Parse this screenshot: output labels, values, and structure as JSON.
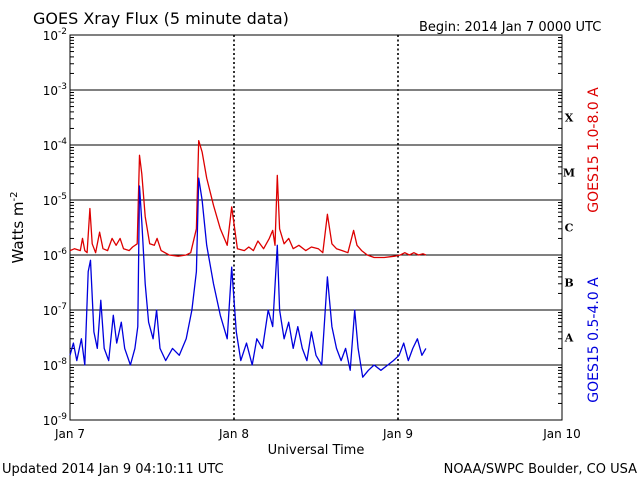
{
  "header": {
    "title": "GOES Xray Flux (5 minute data)",
    "begin": "Begin:  2014 Jan 7 0000 UTC"
  },
  "footer": {
    "updated": "Updated 2014 Jan  9 04:10:11 UTC",
    "credit": "NOAA/SWPC Boulder, CO USA"
  },
  "chart_data": {
    "type": "line",
    "title": "GOES Xray Flux (5 minute data)",
    "xlabel": "Universal Time",
    "ylabel": "Watts m",
    "ylabel_exponent": "-2",
    "y_scale": "log",
    "ylim": [
      1e-09,
      0.01
    ],
    "xlim": [
      "2014-01-07 00:00",
      "2014-01-10 00:00"
    ],
    "x_ticks": [
      "Jan 7",
      "Jan 8",
      "Jan 9",
      "Jan 10"
    ],
    "y_ticks": [
      {
        "value": 1e-09,
        "base": "10",
        "exp": "-9"
      },
      {
        "value": 1e-08,
        "base": "10",
        "exp": "-8"
      },
      {
        "value": 1e-07,
        "base": "10",
        "exp": "-7"
      },
      {
        "value": 1e-06,
        "base": "10",
        "exp": "-6"
      },
      {
        "value": 1e-05,
        "base": "10",
        "exp": "-5"
      },
      {
        "value": 0.0001,
        "base": "10",
        "exp": "-4"
      },
      {
        "value": 0.001,
        "base": "10",
        "exp": "-3"
      },
      {
        "value": 0.01,
        "base": "10",
        "exp": "-2"
      }
    ],
    "flare_classes": [
      {
        "label": "A",
        "value": 3.16e-08
      },
      {
        "label": "B",
        "value": 3.16e-07
      },
      {
        "label": "C",
        "value": 3.16e-06
      },
      {
        "label": "M",
        "value": 3.16e-05
      },
      {
        "label": "X",
        "value": 0.000316
      }
    ],
    "grid": "horizontal at decades; dashed vertical at day boundaries",
    "legend": "right side, vertical",
    "series": [
      {
        "name": "GOES15 1.0-8.0 A",
        "color": "#dd0000",
        "points": [
          [
            "2014-01-07 00:00",
            1.2e-06
          ],
          [
            "2014-01-07 00:40",
            1.3e-06
          ],
          [
            "2014-01-07 01:30",
            1.2e-06
          ],
          [
            "2014-01-07 01:50",
            2e-06
          ],
          [
            "2014-01-07 02:10",
            1.2e-06
          ],
          [
            "2014-01-07 02:30",
            1.1e-06
          ],
          [
            "2014-01-07 02:55",
            7e-06
          ],
          [
            "2014-01-07 03:15",
            1.6e-06
          ],
          [
            "2014-01-07 03:45",
            1.1e-06
          ],
          [
            "2014-01-07 04:20",
            2.6e-06
          ],
          [
            "2014-01-07 04:50",
            1.3e-06
          ],
          [
            "2014-01-07 05:30",
            1.2e-06
          ],
          [
            "2014-01-07 06:10",
            2e-06
          ],
          [
            "2014-01-07 06:45",
            1.5e-06
          ],
          [
            "2014-01-07 07:20",
            2e-06
          ],
          [
            "2014-01-07 07:50",
            1.3e-06
          ],
          [
            "2014-01-07 08:40",
            1.2e-06
          ],
          [
            "2014-01-07 09:10",
            1.4e-06
          ],
          [
            "2014-01-07 09:50",
            1.6e-06
          ],
          [
            "2014-01-07 10:10",
            6.5e-05
          ],
          [
            "2014-01-07 10:30",
            3e-05
          ],
          [
            "2014-01-07 11:00",
            5e-06
          ],
          [
            "2014-01-07 11:40",
            1.6e-06
          ],
          [
            "2014-01-07 12:20",
            1.5e-06
          ],
          [
            "2014-01-07 12:45",
            2e-06
          ],
          [
            "2014-01-07 13:20",
            1.2e-06
          ],
          [
            "2014-01-07 14:30",
            1e-06
          ],
          [
            "2014-01-07 15:50",
            9.5e-07
          ],
          [
            "2014-01-07 17:00",
            1e-06
          ],
          [
            "2014-01-07 17:40",
            1.1e-06
          ],
          [
            "2014-01-07 18:30",
            3e-06
          ],
          [
            "2014-01-07 18:50",
            0.00012
          ],
          [
            "2014-01-07 19:20",
            7.5e-05
          ],
          [
            "2014-01-07 20:00",
            2.5e-05
          ],
          [
            "2014-01-07 21:00",
            8e-06
          ],
          [
            "2014-01-07 22:00",
            3e-06
          ],
          [
            "2014-01-07 23:00",
            1.5e-06
          ],
          [
            "2014-01-07 23:40",
            7.5e-06
          ],
          [
            "2014-01-08 00:30",
            1.3e-06
          ],
          [
            "2014-01-08 01:30",
            1.2e-06
          ],
          [
            "2014-01-08 02:10",
            1.4e-06
          ],
          [
            "2014-01-08 02:50",
            1.2e-06
          ],
          [
            "2014-01-08 03:30",
            1.8e-06
          ],
          [
            "2014-01-08 04:20",
            1.3e-06
          ],
          [
            "2014-01-08 05:10",
            2e-06
          ],
          [
            "2014-01-08 05:40",
            2.8e-06
          ],
          [
            "2014-01-08 06:00",
            1.5e-06
          ],
          [
            "2014-01-08 06:20",
            2.8e-05
          ],
          [
            "2014-01-08 06:40",
            3e-06
          ],
          [
            "2014-01-08 07:20",
            1.6e-06
          ],
          [
            "2014-01-08 08:00",
            2e-06
          ],
          [
            "2014-01-08 08:40",
            1.3e-06
          ],
          [
            "2014-01-08 09:30",
            1.5e-06
          ],
          [
            "2014-01-08 10:30",
            1.2e-06
          ],
          [
            "2014-01-08 11:20",
            1.4e-06
          ],
          [
            "2014-01-08 12:20",
            1.3e-06
          ],
          [
            "2014-01-08 13:00",
            1.1e-06
          ],
          [
            "2014-01-08 13:40",
            5.5e-06
          ],
          [
            "2014-01-08 14:20",
            1.6e-06
          ],
          [
            "2014-01-08 15:00",
            1.3e-06
          ],
          [
            "2014-01-08 15:50",
            1.2e-06
          ],
          [
            "2014-01-08 16:40",
            1.1e-06
          ],
          [
            "2014-01-08 17:30",
            2.8e-06
          ],
          [
            "2014-01-08 18:00",
            1.5e-06
          ],
          [
            "2014-01-08 18:40",
            1.2e-06
          ],
          [
            "2014-01-08 19:30",
            1e-06
          ],
          [
            "2014-01-08 20:30",
            9e-07
          ],
          [
            "2014-01-08 22:00",
            9e-07
          ],
          [
            "2014-01-08 23:30",
            9.5e-07
          ],
          [
            "2014-01-09 00:20",
            1e-06
          ],
          [
            "2014-01-09 01:00",
            1.1e-06
          ],
          [
            "2014-01-09 01:40",
            1e-06
          ],
          [
            "2014-01-09 02:20",
            1.1e-06
          ],
          [
            "2014-01-09 03:00",
            1e-06
          ],
          [
            "2014-01-09 03:40",
            1.05e-06
          ],
          [
            "2014-01-09 04:05",
            1e-06
          ]
        ]
      },
      {
        "name": "GOES15 0.5-4.0 A",
        "color": "#0000dd",
        "points": [
          [
            "2014-01-07 00:00",
            1.5e-08
          ],
          [
            "2014-01-07 00:30",
            2.5e-08
          ],
          [
            "2014-01-07 01:00",
            1.2e-08
          ],
          [
            "2014-01-07 01:40",
            3e-08
          ],
          [
            "2014-01-07 02:10",
            1e-08
          ],
          [
            "2014-01-07 02:40",
            5e-07
          ],
          [
            "2014-01-07 03:00",
            8e-07
          ],
          [
            "2014-01-07 03:30",
            4e-08
          ],
          [
            "2014-01-07 04:00",
            2e-08
          ],
          [
            "2014-01-07 04:30",
            1.5e-07
          ],
          [
            "2014-01-07 05:00",
            2e-08
          ],
          [
            "2014-01-07 05:40",
            1.2e-08
          ],
          [
            "2014-01-07 06:20",
            8e-08
          ],
          [
            "2014-01-07 06:50",
            2.5e-08
          ],
          [
            "2014-01-07 07:30",
            6e-08
          ],
          [
            "2014-01-07 08:00",
            2e-08
          ],
          [
            "2014-01-07 08:50",
            1e-08
          ],
          [
            "2014-01-07 09:30",
            2e-08
          ],
          [
            "2014-01-07 09:55",
            5e-08
          ],
          [
            "2014-01-07 10:10",
            1.8e-05
          ],
          [
            "2014-01-07 10:30",
            4e-06
          ],
          [
            "2014-01-07 11:00",
            3e-07
          ],
          [
            "2014-01-07 11:30",
            6e-08
          ],
          [
            "2014-01-07 12:10",
            3e-08
          ],
          [
            "2014-01-07 12:40",
            1e-07
          ],
          [
            "2014-01-07 13:10",
            2e-08
          ],
          [
            "2014-01-07 14:00",
            1.2e-08
          ],
          [
            "2014-01-07 15:00",
            2e-08
          ],
          [
            "2014-01-07 16:00",
            1.5e-08
          ],
          [
            "2014-01-07 17:00",
            3e-08
          ],
          [
            "2014-01-07 17:50",
            1e-07
          ],
          [
            "2014-01-07 18:30",
            5e-07
          ],
          [
            "2014-01-07 18:50",
            2.5e-05
          ],
          [
            "2014-01-07 19:20",
            1e-05
          ],
          [
            "2014-01-07 20:00",
            1.5e-06
          ],
          [
            "2014-01-07 21:00",
            3e-07
          ],
          [
            "2014-01-07 22:00",
            8e-08
          ],
          [
            "2014-01-07 23:00",
            3e-08
          ],
          [
            "2014-01-07 23:40",
            6e-07
          ],
          [
            "2014-01-08 00:20",
            4e-08
          ],
          [
            "2014-01-08 01:00",
            1.2e-08
          ],
          [
            "2014-01-08 01:50",
            2.5e-08
          ],
          [
            "2014-01-08 02:40",
            1e-08
          ],
          [
            "2014-01-08 03:20",
            3e-08
          ],
          [
            "2014-01-08 04:10",
            2e-08
          ],
          [
            "2014-01-08 05:00",
            1e-07
          ],
          [
            "2014-01-08 05:40",
            5e-08
          ],
          [
            "2014-01-08 06:20",
            1.5e-06
          ],
          [
            "2014-01-08 06:40",
            1e-07
          ],
          [
            "2014-01-08 07:20",
            3e-08
          ],
          [
            "2014-01-08 08:00",
            6e-08
          ],
          [
            "2014-01-08 08:40",
            2e-08
          ],
          [
            "2014-01-08 09:20",
            5e-08
          ],
          [
            "2014-01-08 10:00",
            2e-08
          ],
          [
            "2014-01-08 10:40",
            1.2e-08
          ],
          [
            "2014-01-08 11:20",
            4e-08
          ],
          [
            "2014-01-08 12:00",
            1.5e-08
          ],
          [
            "2014-01-08 12:50",
            1e-08
          ],
          [
            "2014-01-08 13:40",
            4e-07
          ],
          [
            "2014-01-08 14:20",
            5e-08
          ],
          [
            "2014-01-08 15:00",
            2e-08
          ],
          [
            "2014-01-08 15:40",
            1.2e-08
          ],
          [
            "2014-01-08 16:20",
            2e-08
          ],
          [
            "2014-01-08 17:00",
            8e-09
          ],
          [
            "2014-01-08 17:40",
            1e-07
          ],
          [
            "2014-01-08 18:10",
            2e-08
          ],
          [
            "2014-01-08 18:50",
            6e-09
          ],
          [
            "2014-01-08 19:40",
            8e-09
          ],
          [
            "2014-01-08 20:30",
            1e-08
          ],
          [
            "2014-01-08 21:30",
            8e-09
          ],
          [
            "2014-01-08 22:30",
            1e-08
          ],
          [
            "2014-01-08 23:20",
            1.2e-08
          ],
          [
            "2014-01-09 00:10",
            1.5e-08
          ],
          [
            "2014-01-09 00:50",
            2.5e-08
          ],
          [
            "2014-01-09 01:30",
            1.2e-08
          ],
          [
            "2014-01-09 02:10",
            2e-08
          ],
          [
            "2014-01-09 02:50",
            3e-08
          ],
          [
            "2014-01-09 03:30",
            1.5e-08
          ],
          [
            "2014-01-09 04:05",
            2e-08
          ]
        ]
      }
    ]
  }
}
